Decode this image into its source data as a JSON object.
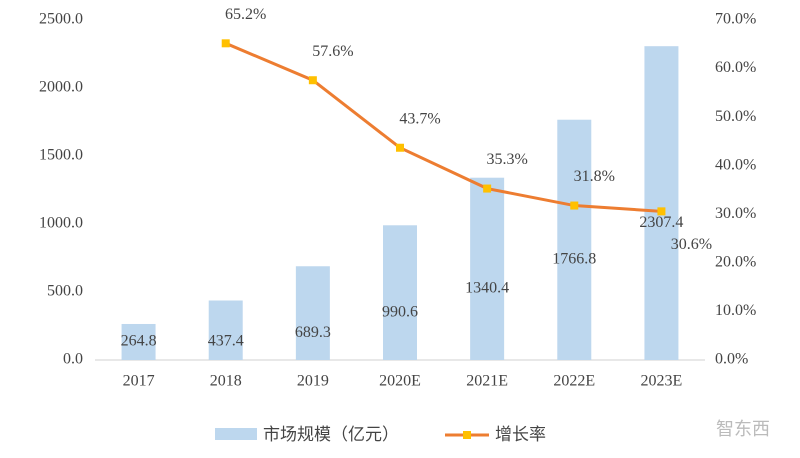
{
  "chart_data": {
    "type": "bar_line",
    "categories": [
      "2017",
      "2018",
      "2019",
      "2020E",
      "2021E",
      "2022E",
      "2023E"
    ],
    "series": [
      {
        "name": "市场规模（亿元）",
        "type": "bar",
        "color": "#bdd7ee",
        "values": [
          264.8,
          437.4,
          689.3,
          990.6,
          1340.4,
          1766.8,
          2307.4
        ]
      },
      {
        "name": "增长率",
        "type": "line",
        "axis": "y2",
        "color": "#ed7d31",
        "marker_color": "#ffc000",
        "values": [
          null,
          65.2,
          57.6,
          43.7,
          35.3,
          31.8,
          30.6
        ],
        "value_labels": [
          null,
          "65.2%",
          "57.6%",
          "43.7%",
          "35.3%",
          "31.8%",
          "30.6%"
        ]
      }
    ],
    "ylim": [
      0,
      2500
    ],
    "yticks": [
      {
        "value": 0,
        "label": "0.0"
      },
      {
        "value": 500,
        "label": "500.0"
      },
      {
        "value": 1000,
        "label": "1000.0"
      },
      {
        "value": 1500,
        "label": "1500.0"
      },
      {
        "value": 2000,
        "label": "2000.0"
      },
      {
        "value": 2500,
        "label": "2500.0"
      }
    ],
    "y2lim": [
      0,
      70
    ],
    "y2ticks": [
      {
        "value": 0,
        "label": "0.0%"
      },
      {
        "value": 10,
        "label": "10.0%"
      },
      {
        "value": 20,
        "label": "20.0%"
      },
      {
        "value": 30,
        "label": "30.0%"
      },
      {
        "value": 40,
        "label": "40.0%"
      },
      {
        "value": 50,
        "label": "50.0%"
      },
      {
        "value": 60,
        "label": "60.0%"
      },
      {
        "value": 70,
        "label": "70.0%"
      }
    ],
    "legend": "bottom",
    "watermark": "智东西"
  }
}
